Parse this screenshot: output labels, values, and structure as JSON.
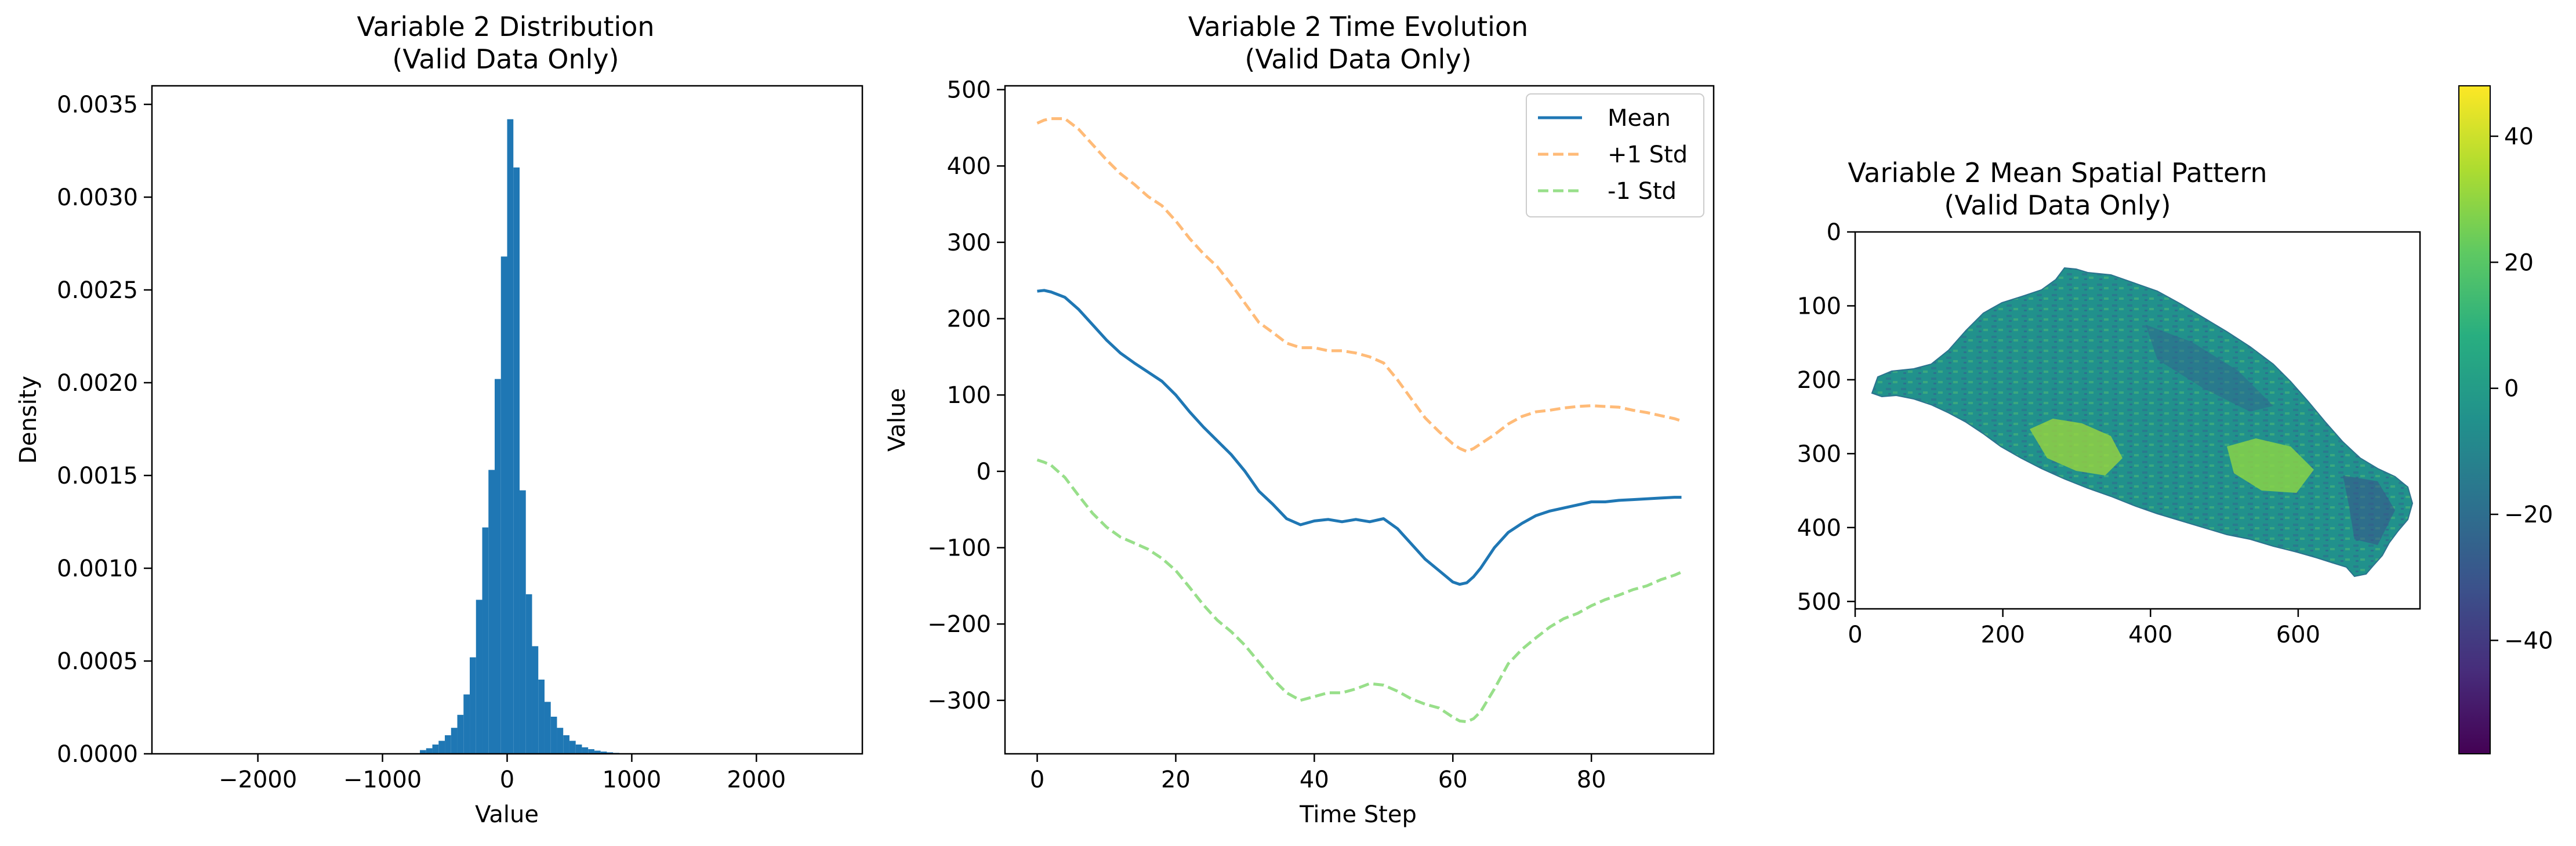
{
  "colors": {
    "hist": "#1f77b4",
    "mean": "#1f77b4",
    "plus_std": "#ffbb78",
    "minus_std": "#98df8a",
    "map_fill": "#1f9e89",
    "map_light": "#a0da39",
    "map_dark": "#31688e"
  },
  "chart_data": [
    {
      "type": "bar",
      "title": "Variable 2 Distribution",
      "subtitle": "(Valid Data Only)",
      "xlabel": "Value",
      "ylabel": "Density",
      "xlim": [
        -2850,
        2850
      ],
      "ylim": [
        0,
        0.0036
      ],
      "xticks": [
        -2000,
        -1000,
        0,
        1000,
        2000
      ],
      "xtick_labels": [
        "−2000",
        "−1000",
        "0",
        "1000",
        "2000"
      ],
      "yticks": [
        0,
        0.0005,
        0.001,
        0.0015,
        0.002,
        0.0025,
        0.003,
        0.0035
      ],
      "ytick_labels": [
        "0.0000",
        "0.0005",
        "0.0010",
        "0.0015",
        "0.0020",
        "0.0025",
        "0.0030",
        "0.0035"
      ],
      "bin_width": 50,
      "bins_left": [
        -700,
        -650,
        -600,
        -550,
        -500,
        -450,
        -400,
        -350,
        -300,
        -250,
        -200,
        -150,
        -100,
        -50,
        0,
        50,
        100,
        150,
        200,
        250,
        300,
        350,
        400,
        450,
        500,
        550,
        600,
        650,
        700,
        750,
        800,
        850,
        900,
        950
      ],
      "values": [
        2e-05,
        3e-05,
        5e-05,
        7e-05,
        0.0001,
        0.00014,
        0.00021,
        0.00032,
        0.00052,
        0.00083,
        0.00122,
        0.00153,
        0.00202,
        0.00268,
        0.00342,
        0.00316,
        0.00142,
        0.00086,
        0.00058,
        0.0004,
        0.00028,
        0.0002,
        0.00014,
        0.0001,
        7e-05,
        5e-05,
        3.5e-05,
        2.5e-05,
        1.7e-05,
        1.2e-05,
        8e-06,
        5e-06,
        3e-06,
        2e-06
      ]
    },
    {
      "type": "line",
      "title": "Variable 2 Time Evolution",
      "subtitle": "(Valid Data Only)",
      "xlabel": "Time Step",
      "ylabel": "Value",
      "xlim": [
        -4.65,
        97.65
      ],
      "ylim": [
        -370,
        505
      ],
      "xticks": [
        0,
        20,
        40,
        60,
        80
      ],
      "xtick_labels": [
        "0",
        "20",
        "40",
        "60",
        "80"
      ],
      "yticks": [
        -300,
        -200,
        -100,
        0,
        100,
        200,
        300,
        400,
        500
      ],
      "ytick_labels": [
        "−300",
        "−200",
        "−100",
        "0",
        "100",
        "200",
        "300",
        "400",
        "500"
      ],
      "legend_position": "top-right",
      "x": [
        0,
        1,
        2,
        4,
        6,
        8,
        10,
        12,
        14,
        16,
        18,
        20,
        22,
        24,
        26,
        28,
        30,
        32,
        34,
        36,
        38,
        40,
        42,
        44,
        46,
        48,
        50,
        52,
        54,
        56,
        58,
        60,
        61,
        62,
        63,
        64,
        66,
        68,
        70,
        72,
        74,
        76,
        78,
        80,
        82,
        84,
        86,
        88,
        90,
        92,
        93
      ],
      "series": [
        {
          "name": "Mean",
          "style": "solid",
          "values": [
            236,
            237,
            235,
            228,
            212,
            192,
            172,
            155,
            142,
            130,
            118,
            100,
            78,
            58,
            40,
            22,
            0,
            -26,
            -43,
            -62,
            -70,
            -65,
            -63,
            -66,
            -63,
            -66,
            -62,
            -75,
            -95,
            -115,
            -130,
            -145,
            -148,
            -146,
            -138,
            -127,
            -100,
            -80,
            -68,
            -58,
            -52,
            -48,
            -44,
            -40,
            -40,
            -38,
            -37,
            -36,
            -35,
            -34,
            -34
          ]
        },
        {
          "name": "+1 Std",
          "style": "dashed",
          "values": [
            456,
            460,
            462,
            462,
            448,
            428,
            408,
            390,
            376,
            360,
            348,
            328,
            305,
            285,
            268,
            245,
            220,
            195,
            182,
            168,
            162,
            162,
            158,
            158,
            155,
            150,
            142,
            120,
            95,
            70,
            52,
            36,
            30,
            26,
            30,
            36,
            48,
            62,
            72,
            78,
            80,
            83,
            85,
            86,
            85,
            84,
            80,
            77,
            73,
            69,
            66
          ]
        },
        {
          "name": "-1 Std",
          "style": "dashed",
          "values": [
            15,
            12,
            8,
            -8,
            -32,
            -55,
            -73,
            -86,
            -94,
            -102,
            -114,
            -130,
            -152,
            -175,
            -195,
            -210,
            -228,
            -250,
            -272,
            -290,
            -300,
            -295,
            -290,
            -290,
            -285,
            -278,
            -280,
            -288,
            -298,
            -305,
            -310,
            -322,
            -327,
            -328,
            -324,
            -315,
            -285,
            -252,
            -233,
            -218,
            -204,
            -193,
            -186,
            -176,
            -168,
            -162,
            -155,
            -150,
            -142,
            -136,
            -132
          ]
        }
      ]
    },
    {
      "type": "heatmap",
      "title": "Variable 2 Mean Spatial Pattern",
      "subtitle": "(Valid Data Only)",
      "xlim": [
        0,
        765
      ],
      "ylim": [
        510,
        0
      ],
      "xticks": [
        0,
        200,
        400,
        600
      ],
      "xtick_labels": [
        "0",
        "200",
        "400",
        "600"
      ],
      "yticks": [
        0,
        100,
        200,
        300,
        400,
        500
      ],
      "ytick_labels": [
        "0",
        "100",
        "200",
        "300",
        "400",
        "500"
      ],
      "colormap": "viridis",
      "color_range": [
        -58,
        48
      ],
      "colorbar_ticks": [
        -40,
        -20,
        0,
        20,
        40
      ],
      "colorbar_tick_labels": [
        "−40",
        "−20",
        "0",
        "20",
        "40"
      ]
    }
  ]
}
